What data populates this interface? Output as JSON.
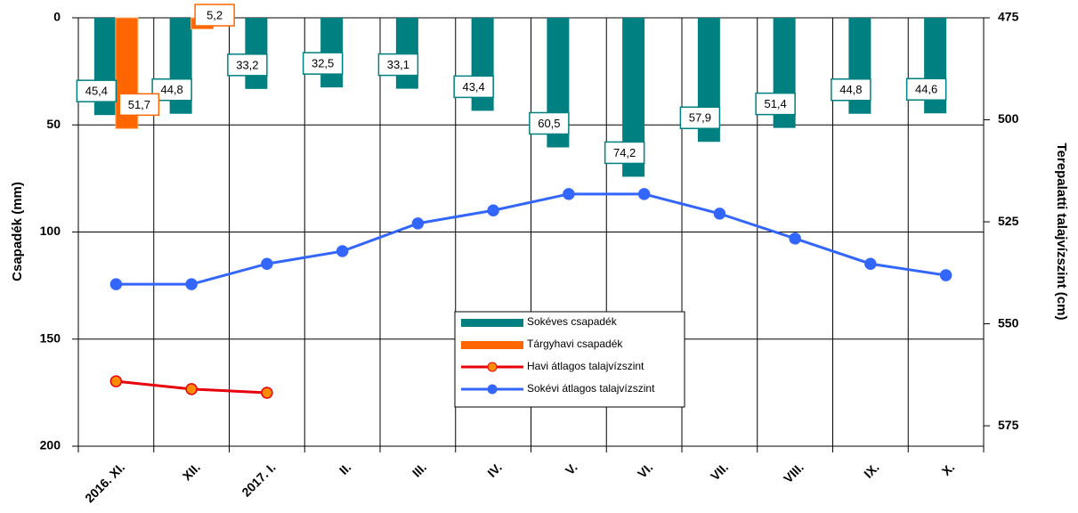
{
  "chart_data": {
    "type": "bar_line",
    "ylabel": "Csapadék (mm)",
    "y2label": "Terepalatti talajvízszint (cm)",
    "categories": [
      "2016. XI.",
      "XII.",
      "2017. I.",
      "II.",
      "III.",
      "IV.",
      "V.",
      "VI.",
      "VII.",
      "VIII.",
      "IX.",
      "X."
    ],
    "ylim": [
      0,
      200
    ],
    "yticks": [
      0,
      50,
      100,
      150,
      200
    ],
    "y_inverted": true,
    "y2lim": [
      475,
      580
    ],
    "y2ticks": [
      475,
      500,
      525,
      550,
      575
    ],
    "y2_inverted": true,
    "grid": true,
    "series": [
      {
        "name": "Sokéves csapadék",
        "kind": "bar",
        "color": "#008080",
        "values": [
          45.4,
          44.8,
          33.2,
          32.5,
          33.1,
          43.4,
          60.5,
          74.2,
          57.9,
          51.4,
          44.8,
          44.6
        ],
        "value_labels": [
          "45,4",
          "44,8",
          "33,2",
          "32,5",
          "33,1",
          "43,4",
          "60,5",
          "74,2",
          "57,9",
          "51,4",
          "44,8",
          "44,6"
        ]
      },
      {
        "name": "Tárgyhavi csapadék",
        "kind": "bar",
        "color": "#ff6600",
        "values": [
          51.7,
          5.2,
          null,
          null,
          null,
          null,
          null,
          null,
          null,
          null,
          null,
          null
        ],
        "value_labels": [
          "51,7",
          "5,2",
          null,
          null,
          null,
          null,
          null,
          null,
          null,
          null,
          null,
          null
        ]
      },
      {
        "name": "Havi átlagos talajvízszint",
        "kind": "line",
        "axis": "y2",
        "color": "#e8000b",
        "values": [
          564.1,
          566.0,
          566.9,
          null,
          null,
          null,
          null,
          null,
          null,
          null,
          null,
          null
        ]
      },
      {
        "name": "Sokévi átlagos talajvízszint",
        "kind": "line",
        "axis": "y2",
        "color": "#3366ff",
        "values": [
          540.3,
          540.3,
          535.3,
          532.2,
          525.4,
          522.2,
          518.2,
          518.2,
          523.0,
          529.1,
          535.3,
          538.1
        ]
      }
    ]
  }
}
